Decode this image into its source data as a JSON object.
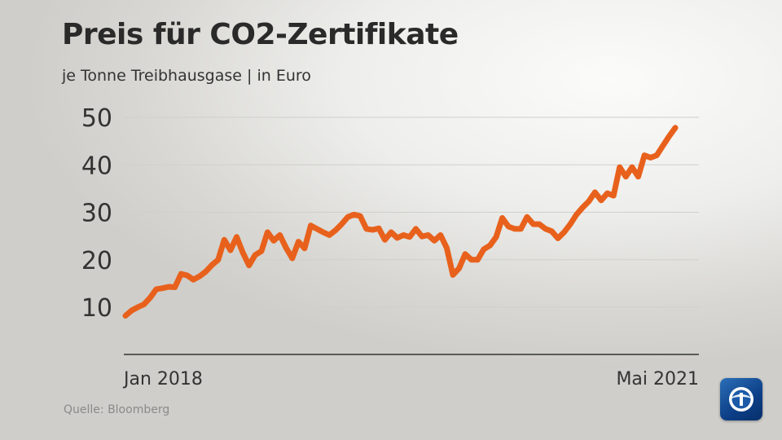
{
  "header": {
    "title": "Preis für CO2-Zertifikate",
    "subtitle": "je Tonne Treibhausgase | in Euro"
  },
  "footer": {
    "source": "Quelle: Bloomberg"
  },
  "logo": {
    "icon": "tagesschau-logo-icon"
  },
  "chart_data": {
    "type": "line",
    "title": "Preis für CO2-Zertifikate",
    "subtitle": "je Tonne Treibhausgase | in Euro",
    "xlabel": "",
    "ylabel": "",
    "x_tick_labels": [
      "Jan 2018",
      "Mai 2021"
    ],
    "y_ticks": [
      10,
      20,
      30,
      40,
      50
    ],
    "ylim": [
      0,
      50
    ],
    "grid": true,
    "legend": "none",
    "colors": {
      "line": "#e8611c",
      "grid": "#cfcfcc",
      "axis": "#333333"
    },
    "series": [
      {
        "values": [
          8.2,
          9.3,
          10.0,
          10.6,
          12.0,
          13.8,
          14.0,
          14.3,
          14.2,
          17.0,
          16.7,
          15.8,
          16.5,
          17.5,
          18.9,
          20.0,
          24.2,
          22.0,
          24.8,
          21.5,
          18.8,
          21.0,
          21.8,
          25.8,
          24.0,
          25.2,
          22.5,
          20.3,
          23.8,
          22.4,
          27.2,
          26.5,
          25.8,
          25.2,
          26.2,
          27.5,
          29.0,
          29.5,
          29.2,
          26.5,
          26.3,
          26.6,
          24.2,
          25.8,
          24.6,
          25.2,
          24.8,
          26.5,
          24.9,
          25.2,
          24.0,
          25.2,
          22.5,
          16.8,
          18.2,
          21.2,
          20.0,
          20.0,
          22.2,
          23.0,
          24.8,
          28.8,
          27.0,
          26.5,
          26.5,
          29.0,
          27.5,
          27.5,
          26.5,
          26.0,
          24.5,
          25.8,
          27.5,
          29.5,
          31.0,
          32.3,
          34.2,
          32.5,
          34.0,
          33.5,
          39.5,
          37.5,
          39.5,
          37.5,
          42.0,
          41.5,
          42.0,
          44.0,
          46.0,
          47.8
        ]
      }
    ]
  }
}
